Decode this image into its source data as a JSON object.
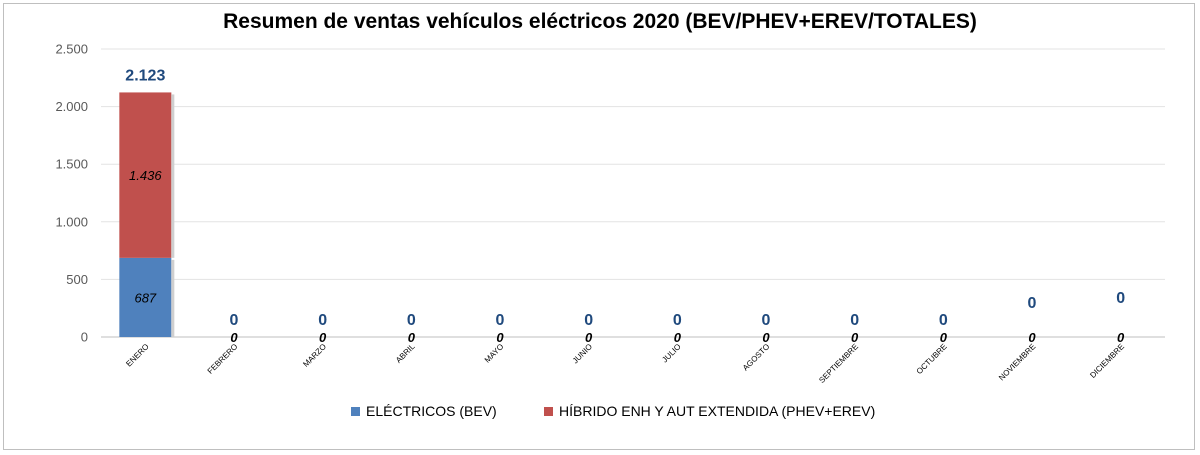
{
  "chart_data": {
    "type": "bar",
    "stacked": true,
    "title": "Resumen de ventas vehículos eléctricos 2020 (BEV/PHEV+EREV/TOTALES)",
    "xlabel": "",
    "ylabel": "",
    "ylim": [
      0,
      2500
    ],
    "yticks": [
      0,
      500,
      1000,
      1500,
      2000,
      2500
    ],
    "ytick_labels": [
      "0",
      "500",
      "1.000",
      "1.500",
      "2.000",
      "2.500"
    ],
    "grid": true,
    "legend_position": "bottom",
    "categories": [
      "ENERO",
      "FEBRERO",
      "MARZO",
      "ABRIL",
      "MAYO",
      "JUNIO",
      "JULIO",
      "AGOSTO",
      "SEPTIEMBRE",
      "OCTUBRE",
      "NOVIEMBRE",
      "DICIEMBRE"
    ],
    "series": [
      {
        "name": "ELÉCTRICOS (BEV)",
        "color": "#4f81bd",
        "values": [
          687,
          0,
          0,
          0,
          0,
          0,
          0,
          0,
          0,
          0,
          0,
          0
        ],
        "labels": [
          "687",
          "",
          "",
          "",
          "",
          "",
          "",
          "",
          "",
          "",
          "",
          ""
        ]
      },
      {
        "name": "HÍBRIDO ENH Y AUT EXTENDIDA (PHEV+EREV)",
        "color": "#c0504d",
        "values": [
          1436,
          0,
          0,
          0,
          0,
          0,
          0,
          0,
          0,
          0,
          0,
          0
        ],
        "labels": [
          "1.436",
          "0",
          "0",
          "0",
          "0",
          "0",
          "0",
          "0",
          "0",
          "0",
          "0",
          "0"
        ]
      }
    ],
    "totals": {
      "values": [
        2123,
        0,
        0,
        0,
        0,
        0,
        0,
        0,
        0,
        0,
        0,
        0
      ],
      "labels": [
        "2.123",
        "0",
        "0",
        "0",
        "0",
        "0",
        "0",
        "0",
        "0",
        "0",
        "0",
        "0"
      ],
      "color": "#1f497d"
    }
  }
}
